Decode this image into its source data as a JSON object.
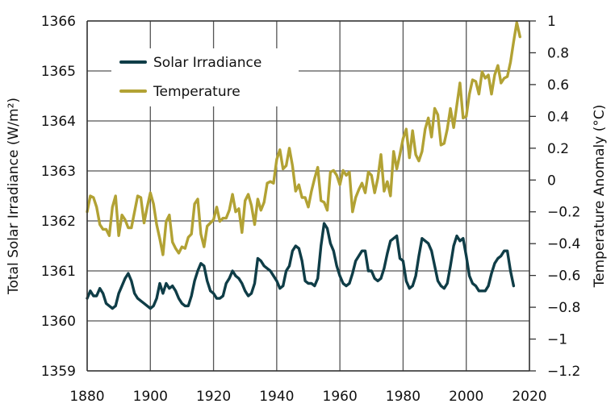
{
  "chart_data": {
    "type": "line",
    "title": "",
    "xlabel": "",
    "ylabel_left": "Total Solar Irradiance (W/m²)",
    "ylabel_right": "Temperature Anomaly (°C)",
    "xlim": [
      1880,
      2020
    ],
    "ylim_left": [
      1359,
      1366
    ],
    "ylim_right": [
      -1.2,
      1.0
    ],
    "x_ticks": [
      "1880",
      "1900",
      "1920",
      "1940",
      "1960",
      "1980",
      "2000",
      "2020"
    ],
    "y_ticks_left": [
      "1359",
      "1360",
      "1361",
      "1362",
      "1363",
      "1364",
      "1365",
      "1366"
    ],
    "y_ticks_right": [
      "1",
      "0.8",
      "0.6",
      "0.4",
      "0.2",
      "0",
      "-0.2",
      "-0.4",
      "-0.6",
      "-0.8",
      "-1",
      "-1.2"
    ],
    "grid": true,
    "legend_position": "top-left",
    "series": [
      {
        "name": "Solar Irradiance",
        "axis": "left",
        "color": "#0f3d47",
        "x_start": 1880,
        "values": [
          1360.45,
          1360.6,
          1360.5,
          1360.5,
          1360.65,
          1360.55,
          1360.35,
          1360.3,
          1360.25,
          1360.3,
          1360.55,
          1360.7,
          1360.85,
          1360.95,
          1360.8,
          1360.55,
          1360.45,
          1360.4,
          1360.35,
          1360.3,
          1360.25,
          1360.3,
          1360.45,
          1360.75,
          1360.55,
          1360.75,
          1360.65,
          1360.7,
          1360.6,
          1360.45,
          1360.35,
          1360.3,
          1360.3,
          1360.5,
          1360.8,
          1361.0,
          1361.15,
          1361.1,
          1360.8,
          1360.6,
          1360.55,
          1360.45,
          1360.45,
          1360.5,
          1360.75,
          1360.85,
          1361.0,
          1360.9,
          1360.85,
          1360.75,
          1360.6,
          1360.5,
          1360.55,
          1360.75,
          1361.25,
          1361.2,
          1361.1,
          1361.05,
          1361.0,
          1360.9,
          1360.8,
          1360.65,
          1360.7,
          1361.0,
          1361.1,
          1361.4,
          1361.5,
          1361.45,
          1361.2,
          1360.8,
          1360.75,
          1360.75,
          1360.7,
          1360.85,
          1361.5,
          1361.95,
          1361.85,
          1361.55,
          1361.4,
          1361.1,
          1360.9,
          1360.75,
          1360.7,
          1360.75,
          1360.95,
          1361.2,
          1361.3,
          1361.4,
          1361.4,
          1361.0,
          1361.0,
          1360.85,
          1360.8,
          1360.85,
          1361.05,
          1361.35,
          1361.6,
          1361.65,
          1361.7,
          1361.25,
          1361.2,
          1360.8,
          1360.65,
          1360.7,
          1360.9,
          1361.3,
          1361.65,
          1361.6,
          1361.55,
          1361.4,
          1361.1,
          1360.8,
          1360.7,
          1360.65,
          1360.75,
          1361.1,
          1361.5,
          1361.7,
          1361.6,
          1361.65,
          1361.3,
          1360.9,
          1360.75,
          1360.7,
          1360.6,
          1360.6,
          1360.6,
          1360.7,
          1360.95,
          1361.15,
          1361.25,
          1361.3,
          1361.4,
          1361.4,
          1361.0,
          1360.7
        ]
      },
      {
        "name": "Temperature",
        "axis": "right",
        "color": "#b2a234",
        "x_start": 1880,
        "values": [
          -0.2,
          -0.1,
          -0.11,
          -0.17,
          -0.28,
          -0.31,
          -0.31,
          -0.35,
          -0.17,
          -0.1,
          -0.35,
          -0.22,
          -0.25,
          -0.3,
          -0.3,
          -0.2,
          -0.1,
          -0.11,
          -0.27,
          -0.17,
          -0.08,
          -0.15,
          -0.28,
          -0.37,
          -0.47,
          -0.26,
          -0.22,
          -0.39,
          -0.43,
          -0.46,
          -0.42,
          -0.43,
          -0.36,
          -0.34,
          -0.15,
          -0.12,
          -0.34,
          -0.42,
          -0.29,
          -0.27,
          -0.25,
          -0.17,
          -0.26,
          -0.24,
          -0.24,
          -0.19,
          -0.09,
          -0.2,
          -0.18,
          -0.33,
          -0.13,
          -0.09,
          -0.16,
          -0.28,
          -0.12,
          -0.19,
          -0.14,
          -0.02,
          -0.01,
          -0.02,
          0.13,
          0.19,
          0.07,
          0.09,
          0.2,
          0.09,
          -0.07,
          -0.03,
          -0.11,
          -0.11,
          -0.17,
          -0.07,
          0.01,
          0.08,
          -0.13,
          -0.14,
          -0.19,
          0.05,
          0.06,
          0.03,
          -0.03,
          0.06,
          0.03,
          0.05,
          -0.2,
          -0.11,
          -0.06,
          -0.02,
          -0.08,
          0.05,
          0.03,
          -0.08,
          0.01,
          0.16,
          -0.07,
          -0.01,
          -0.1,
          0.18,
          0.07,
          0.16,
          0.26,
          0.32,
          0.14,
          0.31,
          0.16,
          0.12,
          0.18,
          0.32,
          0.39,
          0.27,
          0.45,
          0.41,
          0.22,
          0.23,
          0.32,
          0.45,
          0.33,
          0.47,
          0.61,
          0.39,
          0.4,
          0.54,
          0.63,
          0.62,
          0.54,
          0.68,
          0.64,
          0.66,
          0.54,
          0.66,
          0.72,
          0.61,
          0.64,
          0.65,
          0.74,
          0.87,
          0.99,
          0.9
        ]
      }
    ]
  },
  "legend": {
    "items": [
      {
        "label": "Solar Irradiance",
        "color": "#0f3d47"
      },
      {
        "label": "Temperature",
        "color": "#b2a234"
      }
    ]
  },
  "axes": {
    "left_title": "Total Solar Irradiance (W/m²)",
    "right_title": "Temperature Anomaly (°C)"
  }
}
